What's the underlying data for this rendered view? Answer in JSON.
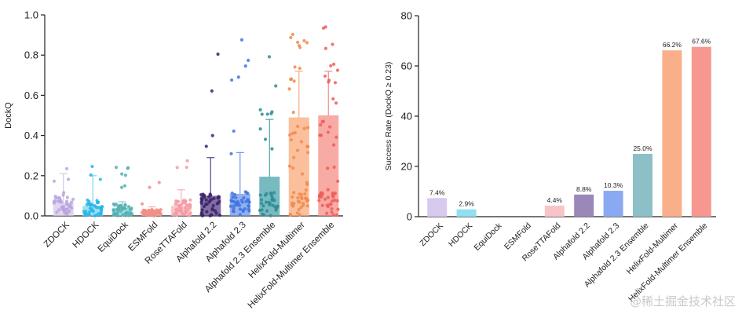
{
  "watermark": "@稀土掘金技术社区",
  "chart_data": [
    {
      "type": "bar",
      "ylabel": "DockQ",
      "xlabel": "",
      "ylim": [
        0,
        1.0
      ],
      "yticks": [
        "0.0",
        "0.2",
        "0.4",
        "0.6",
        "0.8",
        "1.0"
      ],
      "grid": false,
      "categories": [
        "ZDOCK",
        "HDOCK",
        "EquiDock",
        "ESMFold",
        "RoseTTAFold",
        "Alphafold 2.2",
        "Alphafold 2.3",
        "Alphafold 2.3 Ensemble",
        "HelixFold-Multimer",
        "HelixFold-Multimer Ensemble"
      ],
      "values": [
        0.065,
        0.05,
        0.04,
        0.02,
        0.05,
        0.1,
        0.11,
        0.195,
        0.49,
        0.5
      ],
      "errors": [
        0.21,
        0.2,
        0.07,
        0.045,
        0.13,
        0.29,
        0.315,
        0.48,
        0.72,
        0.72
      ],
      "colors": [
        "#d6c8ea",
        "#7ad6f0",
        "#86ccce",
        "#f7b3ad",
        "#f9b1b6",
        "#5a3f86",
        "#6d95ea",
        "#4aa3aa",
        "#f9a97b",
        "#f58d85"
      ],
      "dot_colors": [
        "#b8a5de",
        "#29b6ea",
        "#52b0b3",
        "#f28e86",
        "#f39aa2",
        "#3b2369",
        "#3f74e0",
        "#2f8b93",
        "#f08a4f",
        "#ee5e58"
      ]
    },
    {
      "type": "bar",
      "ylabel": "Success Rate (DockQ ≥ 0.23)",
      "xlabel": "",
      "ylim": [
        0,
        80
      ],
      "yticks": [
        "0",
        "20",
        "40",
        "60",
        "80"
      ],
      "grid": false,
      "categories": [
        "ZDOCK",
        "HDOCK",
        "EquiDock",
        "ESMFold",
        "RoseTTAFold",
        "Alphafold 2.2",
        "Alphafold 2.3",
        "Alphafold 2.3 Ensemble",
        "HelixFold-Multimer",
        "HelixFold-Multimer Ensemble"
      ],
      "values": [
        7.4,
        2.9,
        0,
        0,
        4.4,
        8.8,
        10.3,
        25.0,
        66.2,
        67.6
      ],
      "labels": [
        "7.4%",
        "2.9%",
        "",
        "",
        "4.4%",
        "8.8%",
        "10.3%",
        "25.0%",
        "66.2%",
        "67.6%"
      ],
      "colors": [
        "#d8c9ef",
        "#8ee0f2",
        "#9ad6d6",
        "#f7c0ba",
        "#f9c4c8",
        "#9c88b8",
        "#8ba9f2",
        "#8cc0c6",
        "#f9b08a",
        "#f79890"
      ]
    }
  ]
}
